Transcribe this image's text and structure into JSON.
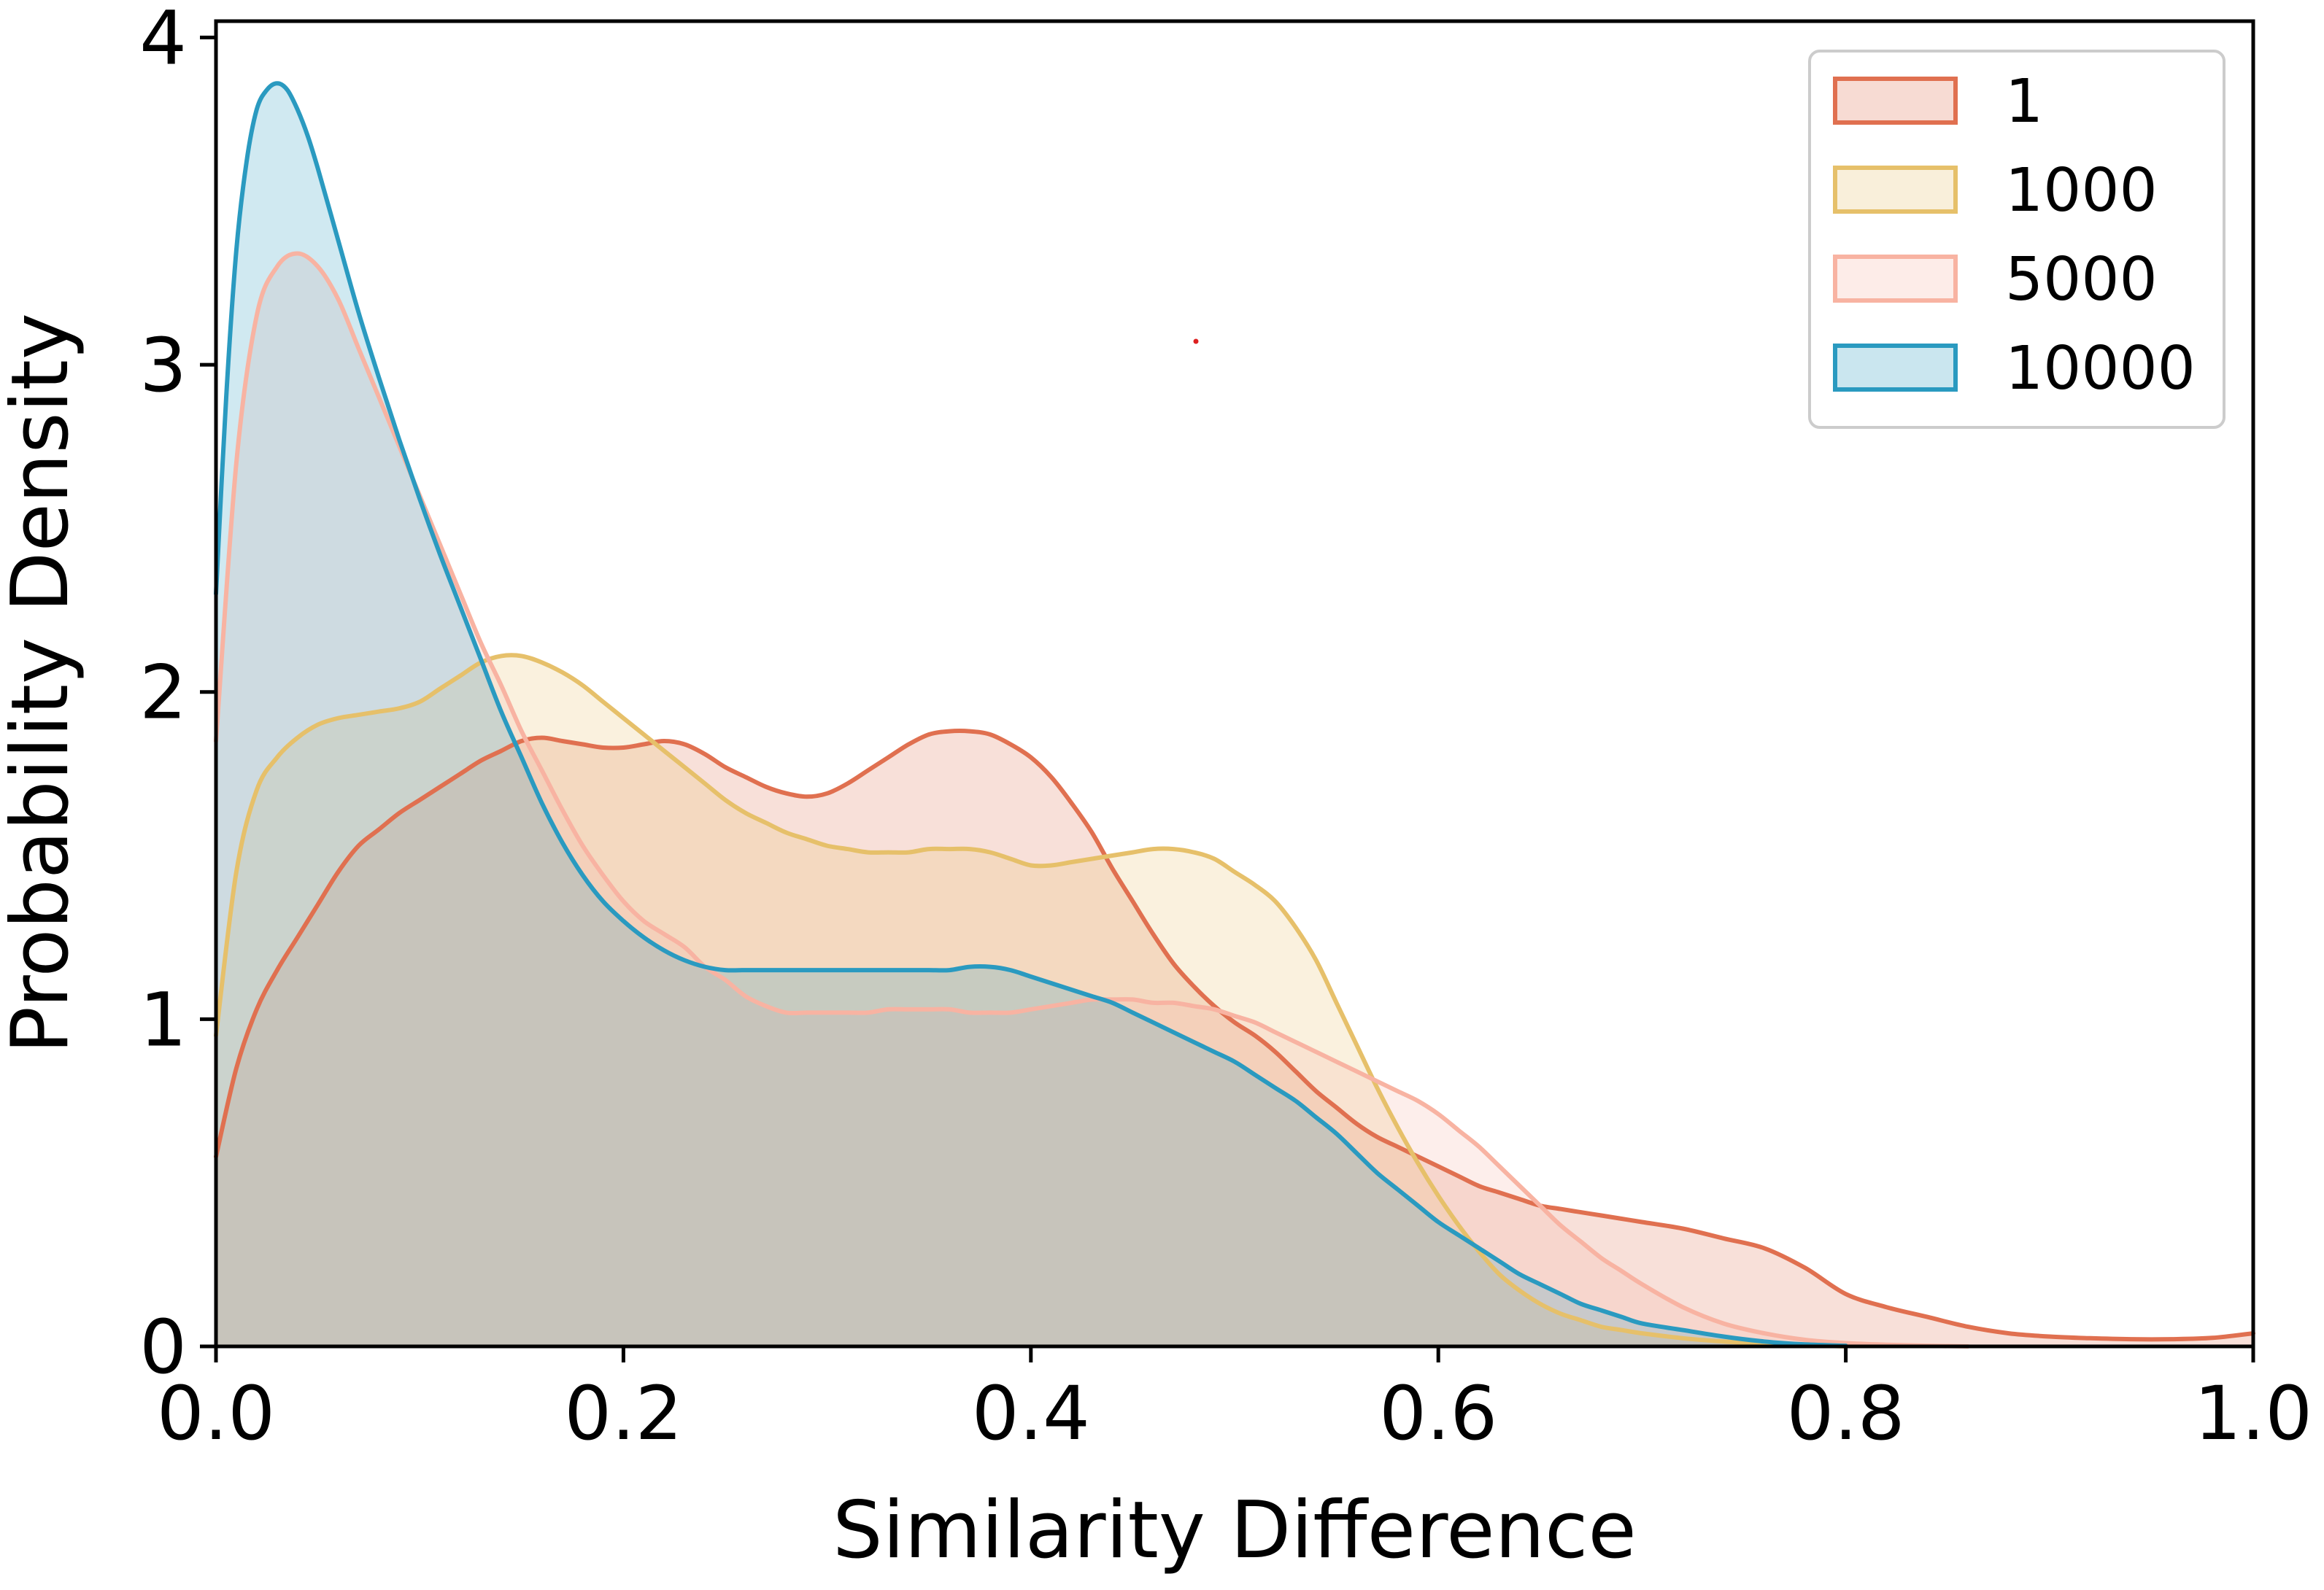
{
  "chart_data": {
    "type": "area",
    "title": "",
    "xlabel": "Similarity Difference",
    "ylabel": "Probability Density",
    "xlim": [
      0.0,
      1.0
    ],
    "ylim": [
      0,
      4.05
    ],
    "xticks": [
      0.0,
      0.2,
      0.4,
      0.6,
      0.8,
      1.0
    ],
    "xtick_labels": [
      "0.0",
      "0.2",
      "0.4",
      "0.6",
      "0.8",
      "1.0"
    ],
    "yticks": [
      0,
      1,
      2,
      3,
      4
    ],
    "ytick_labels": [
      "0",
      "1",
      "2",
      "3",
      "4"
    ],
    "grid": false,
    "legend_position": "upper-right",
    "series": [
      {
        "name": "1",
        "color": "#E07050",
        "x": [
          0.0,
          0.01,
          0.02,
          0.03,
          0.04,
          0.05,
          0.06,
          0.07,
          0.08,
          0.09,
          0.1,
          0.11,
          0.12,
          0.13,
          0.14,
          0.15,
          0.16,
          0.17,
          0.18,
          0.19,
          0.2,
          0.21,
          0.22,
          0.23,
          0.24,
          0.25,
          0.26,
          0.27,
          0.28,
          0.29,
          0.3,
          0.31,
          0.32,
          0.33,
          0.34,
          0.35,
          0.36,
          0.37,
          0.38,
          0.39,
          0.4,
          0.41,
          0.42,
          0.43,
          0.44,
          0.45,
          0.46,
          0.47,
          0.48,
          0.49,
          0.5,
          0.51,
          0.52,
          0.53,
          0.54,
          0.55,
          0.56,
          0.57,
          0.58,
          0.59,
          0.6,
          0.61,
          0.62,
          0.63,
          0.64,
          0.65,
          0.66,
          0.67,
          0.68,
          0.69,
          0.7,
          0.72,
          0.74,
          0.76,
          0.78,
          0.8,
          0.82,
          0.84,
          0.86,
          0.88,
          0.9,
          0.92,
          0.94,
          0.96,
          0.98,
          1.0
        ],
        "values": [
          0.58,
          0.85,
          1.03,
          1.15,
          1.25,
          1.35,
          1.45,
          1.53,
          1.58,
          1.63,
          1.67,
          1.71,
          1.75,
          1.79,
          1.82,
          1.85,
          1.86,
          1.85,
          1.84,
          1.83,
          1.83,
          1.84,
          1.85,
          1.84,
          1.81,
          1.77,
          1.74,
          1.71,
          1.69,
          1.68,
          1.69,
          1.72,
          1.76,
          1.8,
          1.84,
          1.87,
          1.88,
          1.88,
          1.87,
          1.84,
          1.8,
          1.74,
          1.66,
          1.57,
          1.46,
          1.36,
          1.26,
          1.17,
          1.1,
          1.04,
          0.99,
          0.95,
          0.9,
          0.84,
          0.78,
          0.73,
          0.68,
          0.64,
          0.61,
          0.58,
          0.55,
          0.52,
          0.49,
          0.47,
          0.45,
          0.43,
          0.42,
          0.41,
          0.4,
          0.39,
          0.38,
          0.36,
          0.33,
          0.3,
          0.24,
          0.16,
          0.12,
          0.09,
          0.06,
          0.04,
          0.03,
          0.025,
          0.022,
          0.022,
          0.026,
          0.04
        ]
      },
      {
        "name": "1000",
        "color": "#E6C06A",
        "x": [
          0.0,
          0.01,
          0.02,
          0.03,
          0.04,
          0.05,
          0.06,
          0.07,
          0.08,
          0.09,
          0.1,
          0.11,
          0.12,
          0.13,
          0.14,
          0.15,
          0.16,
          0.17,
          0.18,
          0.19,
          0.2,
          0.21,
          0.22,
          0.23,
          0.24,
          0.25,
          0.26,
          0.27,
          0.28,
          0.29,
          0.3,
          0.31,
          0.32,
          0.33,
          0.34,
          0.35,
          0.36,
          0.37,
          0.38,
          0.39,
          0.4,
          0.41,
          0.42,
          0.43,
          0.44,
          0.45,
          0.46,
          0.47,
          0.48,
          0.49,
          0.5,
          0.51,
          0.52,
          0.53,
          0.54,
          0.55,
          0.56,
          0.57,
          0.58,
          0.59,
          0.6,
          0.61,
          0.62,
          0.63,
          0.64,
          0.65,
          0.66,
          0.67,
          0.68,
          0.69,
          0.7,
          0.72,
          0.74,
          0.76,
          0.78,
          0.8
        ],
        "values": [
          0.95,
          1.45,
          1.7,
          1.8,
          1.86,
          1.9,
          1.92,
          1.93,
          1.94,
          1.95,
          1.97,
          2.01,
          2.05,
          2.09,
          2.11,
          2.11,
          2.09,
          2.06,
          2.02,
          1.97,
          1.92,
          1.87,
          1.82,
          1.77,
          1.72,
          1.67,
          1.63,
          1.6,
          1.57,
          1.55,
          1.53,
          1.52,
          1.51,
          1.51,
          1.51,
          1.52,
          1.52,
          1.52,
          1.51,
          1.49,
          1.47,
          1.47,
          1.48,
          1.49,
          1.5,
          1.51,
          1.52,
          1.52,
          1.51,
          1.49,
          1.45,
          1.41,
          1.36,
          1.28,
          1.18,
          1.05,
          0.92,
          0.79,
          0.67,
          0.56,
          0.46,
          0.37,
          0.29,
          0.22,
          0.17,
          0.13,
          0.1,
          0.08,
          0.06,
          0.05,
          0.04,
          0.025,
          0.015,
          0.008,
          0.004,
          0.0
        ]
      },
      {
        "name": "5000",
        "color": "#F8B3A2",
        "x": [
          0.0,
          0.01,
          0.02,
          0.03,
          0.04,
          0.05,
          0.06,
          0.07,
          0.08,
          0.09,
          0.1,
          0.11,
          0.12,
          0.13,
          0.14,
          0.15,
          0.16,
          0.17,
          0.18,
          0.19,
          0.2,
          0.21,
          0.22,
          0.23,
          0.24,
          0.25,
          0.26,
          0.27,
          0.28,
          0.29,
          0.3,
          0.31,
          0.32,
          0.33,
          0.34,
          0.35,
          0.36,
          0.37,
          0.38,
          0.39,
          0.4,
          0.41,
          0.42,
          0.43,
          0.44,
          0.45,
          0.46,
          0.47,
          0.48,
          0.49,
          0.5,
          0.51,
          0.52,
          0.53,
          0.54,
          0.55,
          0.56,
          0.57,
          0.58,
          0.59,
          0.6,
          0.61,
          0.62,
          0.63,
          0.64,
          0.65,
          0.66,
          0.67,
          0.68,
          0.69,
          0.7,
          0.72,
          0.74,
          0.76,
          0.78,
          0.8,
          0.82,
          0.84,
          0.86
        ],
        "values": [
          1.85,
          2.7,
          3.15,
          3.3,
          3.34,
          3.3,
          3.2,
          3.05,
          2.9,
          2.75,
          2.6,
          2.45,
          2.3,
          2.15,
          2.02,
          1.88,
          1.76,
          1.64,
          1.53,
          1.44,
          1.36,
          1.3,
          1.26,
          1.22,
          1.16,
          1.12,
          1.07,
          1.04,
          1.02,
          1.02,
          1.02,
          1.02,
          1.02,
          1.03,
          1.03,
          1.03,
          1.03,
          1.02,
          1.02,
          1.02,
          1.03,
          1.04,
          1.05,
          1.06,
          1.06,
          1.06,
          1.05,
          1.05,
          1.04,
          1.03,
          1.01,
          0.99,
          0.96,
          0.93,
          0.9,
          0.87,
          0.84,
          0.81,
          0.78,
          0.75,
          0.71,
          0.66,
          0.61,
          0.55,
          0.49,
          0.43,
          0.37,
          0.32,
          0.27,
          0.23,
          0.19,
          0.12,
          0.07,
          0.04,
          0.02,
          0.01,
          0.005,
          0.002,
          0.0
        ]
      },
      {
        "name": "10000",
        "color": "#2A9AC0",
        "x": [
          0.0,
          0.005,
          0.01,
          0.015,
          0.02,
          0.025,
          0.03,
          0.035,
          0.04,
          0.045,
          0.05,
          0.06,
          0.07,
          0.08,
          0.09,
          0.1,
          0.11,
          0.12,
          0.13,
          0.14,
          0.15,
          0.16,
          0.17,
          0.18,
          0.19,
          0.2,
          0.21,
          0.22,
          0.23,
          0.24,
          0.25,
          0.26,
          0.27,
          0.28,
          0.29,
          0.3,
          0.31,
          0.32,
          0.33,
          0.34,
          0.35,
          0.36,
          0.37,
          0.38,
          0.39,
          0.4,
          0.41,
          0.42,
          0.43,
          0.44,
          0.45,
          0.46,
          0.47,
          0.48,
          0.49,
          0.5,
          0.51,
          0.52,
          0.53,
          0.54,
          0.55,
          0.56,
          0.57,
          0.58,
          0.59,
          0.6,
          0.61,
          0.62,
          0.63,
          0.64,
          0.65,
          0.66,
          0.67,
          0.68,
          0.69,
          0.7,
          0.72,
          0.74,
          0.76,
          0.78,
          0.8
        ],
        "values": [
          2.3,
          2.9,
          3.35,
          3.62,
          3.78,
          3.84,
          3.86,
          3.84,
          3.78,
          3.7,
          3.6,
          3.38,
          3.16,
          2.96,
          2.77,
          2.59,
          2.42,
          2.26,
          2.1,
          1.94,
          1.8,
          1.66,
          1.54,
          1.44,
          1.36,
          1.3,
          1.25,
          1.21,
          1.18,
          1.16,
          1.15,
          1.15,
          1.15,
          1.15,
          1.15,
          1.15,
          1.15,
          1.15,
          1.15,
          1.15,
          1.15,
          1.15,
          1.16,
          1.16,
          1.15,
          1.13,
          1.11,
          1.09,
          1.07,
          1.05,
          1.02,
          0.99,
          0.96,
          0.93,
          0.9,
          0.87,
          0.83,
          0.79,
          0.75,
          0.7,
          0.65,
          0.59,
          0.53,
          0.48,
          0.43,
          0.38,
          0.34,
          0.3,
          0.26,
          0.22,
          0.19,
          0.16,
          0.13,
          0.11,
          0.09,
          0.07,
          0.05,
          0.03,
          0.015,
          0.006,
          0.002
        ]
      }
    ]
  }
}
